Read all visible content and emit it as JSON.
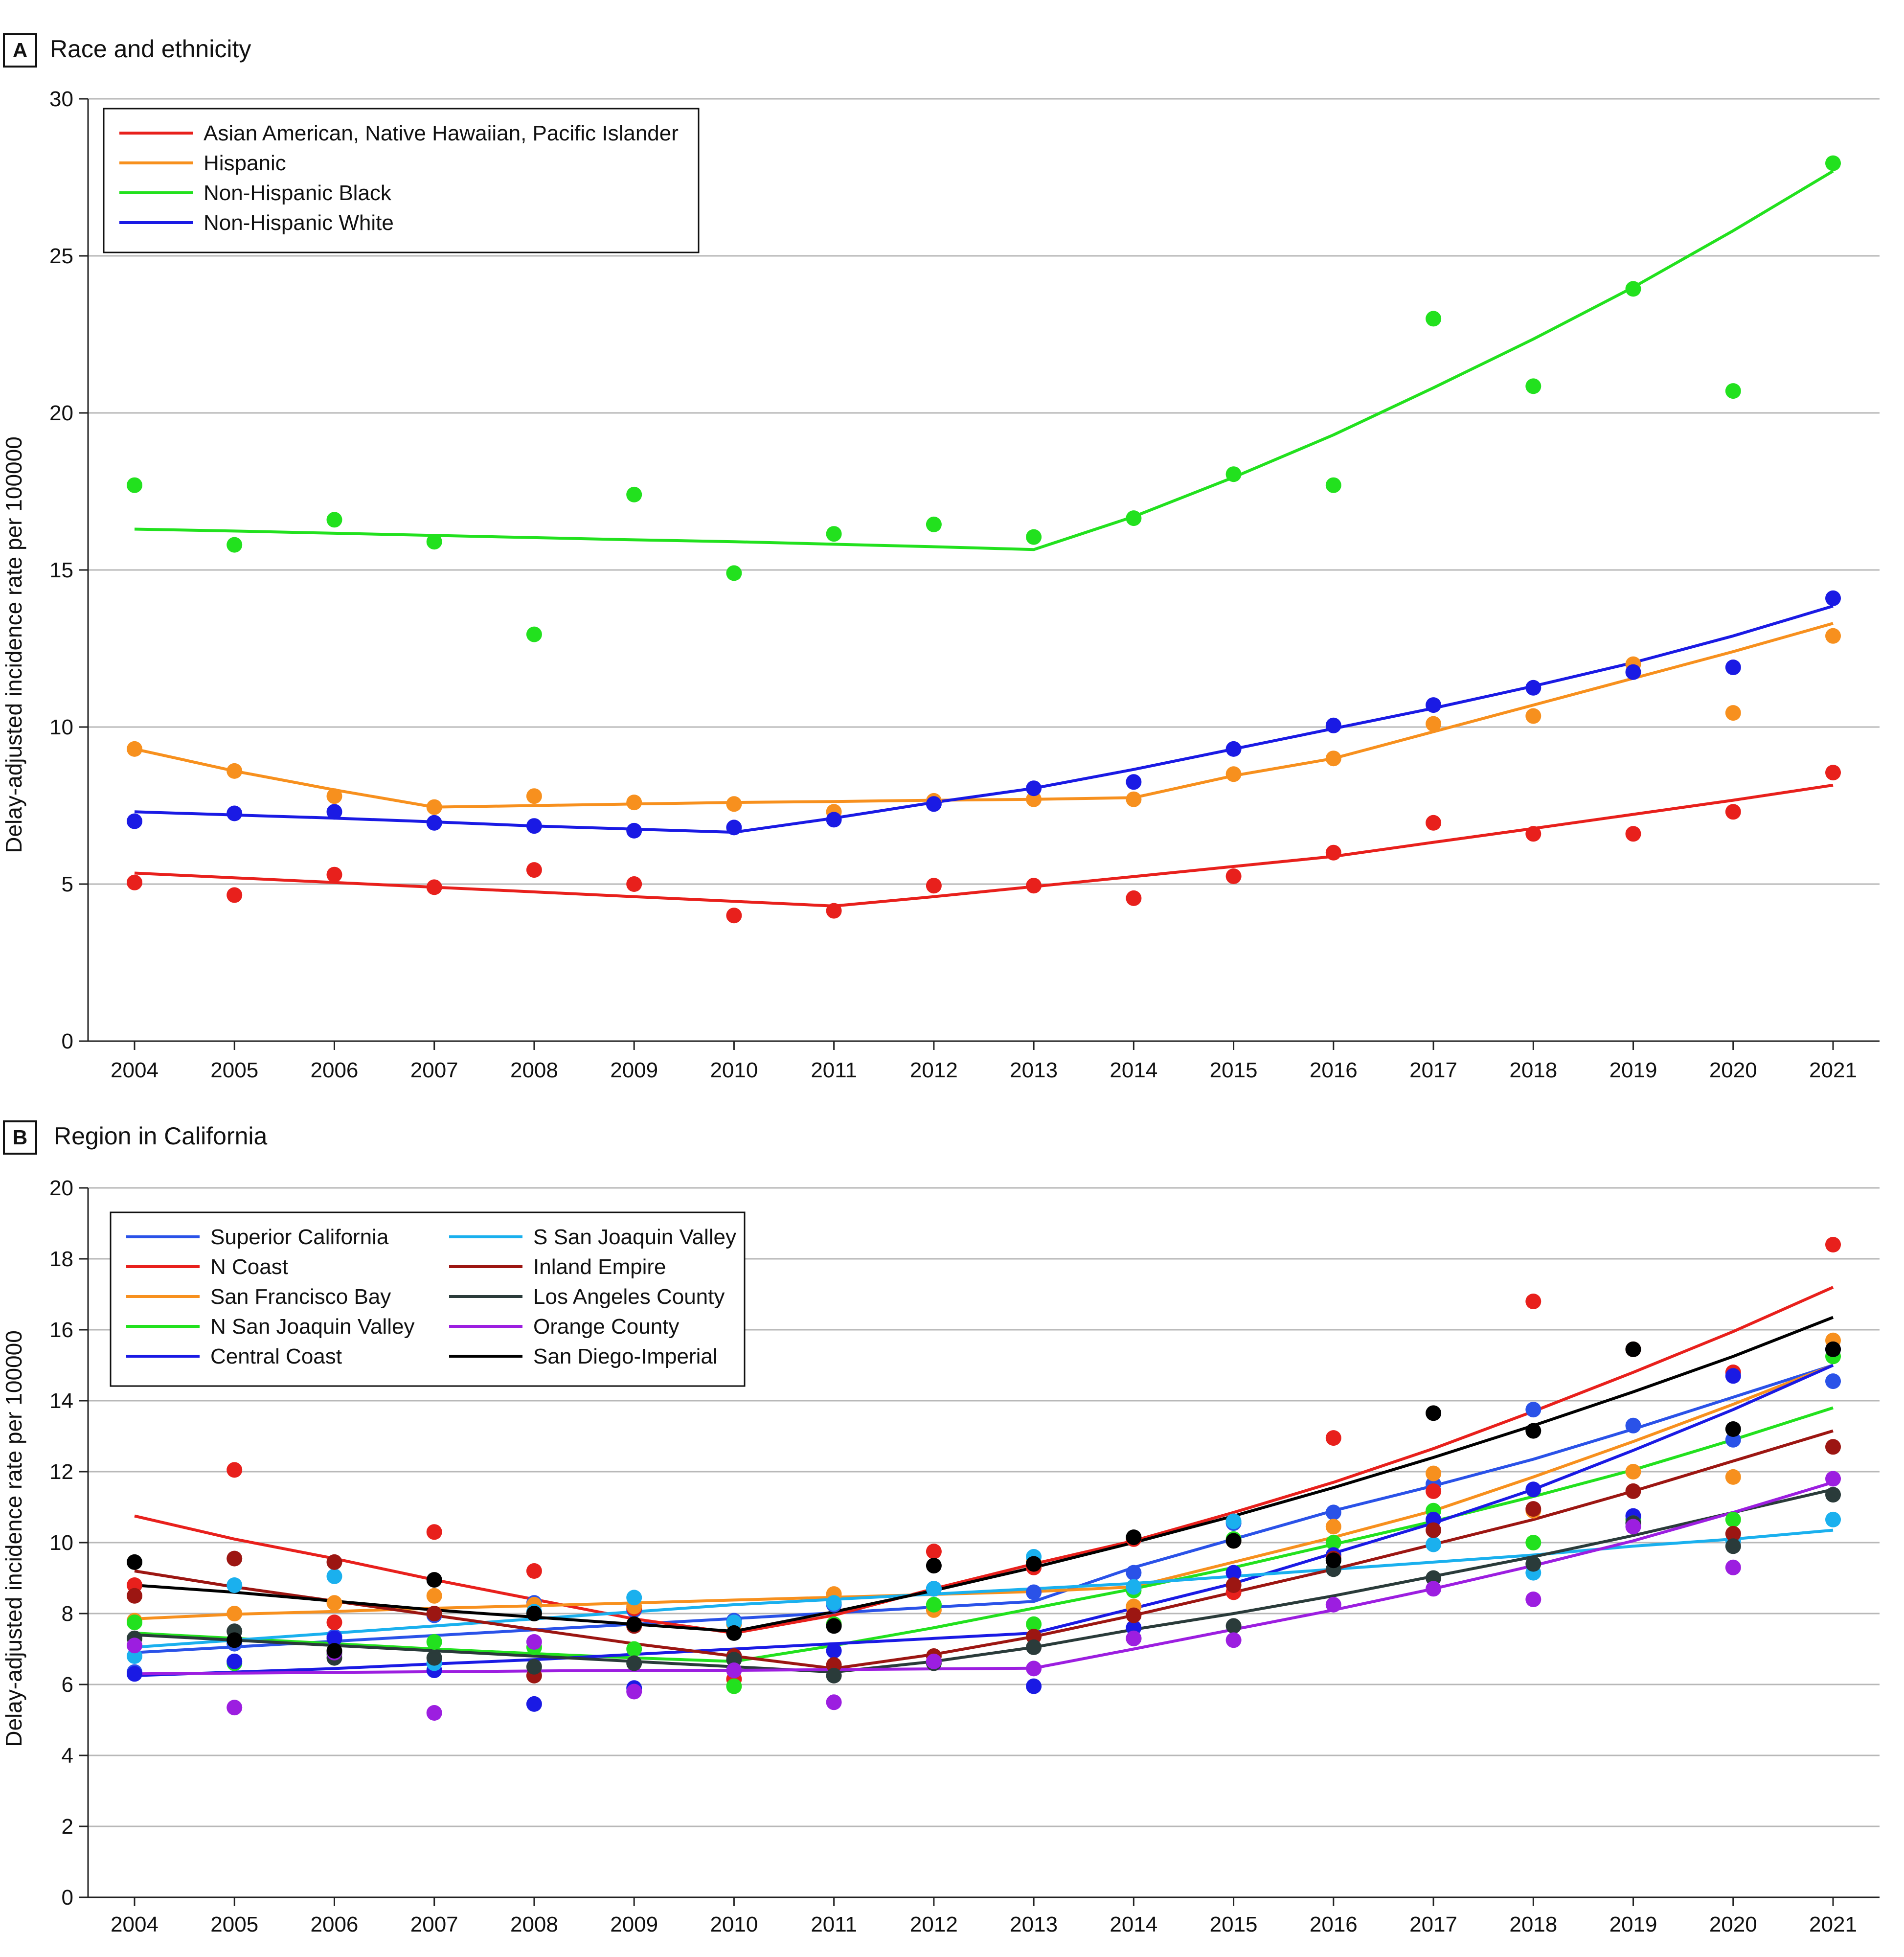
{
  "chart_data": [
    {
      "type": "line",
      "panel_label": "A",
      "title": "Race and ethnicity",
      "xlabel": "",
      "ylabel": "Delay-adjusted incidence rate per 100000",
      "ylim": [
        0,
        30
      ],
      "yticks": [
        0,
        5,
        10,
        15,
        20,
        25,
        30
      ],
      "categories": [
        2004,
        2005,
        2006,
        2007,
        2008,
        2009,
        2010,
        2011,
        2012,
        2013,
        2014,
        2015,
        2016,
        2017,
        2018,
        2019,
        2020,
        2021
      ],
      "legend_position": "top-left",
      "grid": true,
      "series": [
        {
          "name": "Asian American, Native Hawaiian, Pacific Islander",
          "color": "#e8201c",
          "points": [
            5.05,
            4.65,
            5.3,
            4.9,
            5.45,
            5.0,
            4.0,
            4.15,
            4.95,
            4.95,
            4.55,
            5.25,
            6.0,
            6.95,
            6.6,
            6.6,
            7.3,
            8.55
          ],
          "trend": [
            5.35,
            5.2,
            5.05,
            4.9,
            4.75,
            4.6,
            4.45,
            4.3,
            4.6,
            4.92,
            5.24,
            5.56,
            5.88,
            6.33,
            6.77,
            7.22,
            7.67,
            8.15
          ]
        },
        {
          "name": "Hispanic",
          "color": "#f7901e",
          "points": [
            9.3,
            8.6,
            7.8,
            7.45,
            7.8,
            7.6,
            7.55,
            7.3,
            7.65,
            7.7,
            7.7,
            8.5,
            9.0,
            10.1,
            10.35,
            12.0,
            10.45,
            12.9
          ],
          "trend": [
            9.3,
            8.6,
            8.0,
            7.45,
            7.5,
            7.55,
            7.6,
            7.63,
            7.67,
            7.7,
            7.75,
            8.45,
            9.0,
            9.85,
            10.7,
            11.55,
            12.4,
            13.3
          ]
        },
        {
          "name": "Non-Hispanic Black",
          "color": "#22e11e",
          "points": [
            17.7,
            15.8,
            16.6,
            15.9,
            12.95,
            17.4,
            14.9,
            16.15,
            16.45,
            16.05,
            16.65,
            18.05,
            17.7,
            23.0,
            20.85,
            23.95,
            20.7,
            27.95
          ],
          "trend": [
            16.3,
            16.24,
            16.17,
            16.1,
            16.03,
            15.96,
            15.9,
            15.82,
            15.74,
            15.65,
            16.7,
            17.95,
            19.3,
            20.8,
            22.35,
            24.0,
            25.8,
            27.7
          ]
        },
        {
          "name": "Non-Hispanic White",
          "color": "#1a1ae4",
          "points": [
            7.0,
            7.25,
            7.3,
            6.95,
            6.85,
            6.7,
            6.8,
            7.05,
            7.55,
            8.05,
            8.25,
            9.3,
            10.05,
            10.7,
            11.25,
            11.75,
            11.9,
            14.1
          ],
          "trend": [
            7.3,
            7.2,
            7.1,
            6.98,
            6.85,
            6.75,
            6.65,
            7.1,
            7.6,
            8.05,
            8.65,
            9.3,
            9.95,
            10.6,
            11.3,
            12.05,
            12.9,
            13.85
          ]
        }
      ]
    },
    {
      "type": "line",
      "panel_label": "B",
      "title": "Region in California",
      "xlabel": "",
      "ylabel": "Delay-adjusted incidence rate per 100000",
      "ylim": [
        0,
        20
      ],
      "yticks": [
        0,
        2,
        4,
        6,
        8,
        10,
        12,
        14,
        16,
        18,
        20
      ],
      "categories": [
        2004,
        2005,
        2006,
        2007,
        2008,
        2009,
        2010,
        2011,
        2012,
        2013,
        2014,
        2015,
        2016,
        2017,
        2018,
        2019,
        2020,
        2021
      ],
      "legend_position": "top-left",
      "legend_columns": 2,
      "grid": true,
      "series": [
        {
          "name": "Superior California",
          "color": "#2a52e8",
          "points": [
            6.35,
            7.15,
            7.35,
            7.95,
            8.3,
            8.1,
            7.8,
            8.25,
            8.7,
            8.6,
            9.15,
            10.55,
            10.85,
            11.65,
            13.75,
            13.3,
            12.9,
            14.55
          ],
          "trend": [
            6.9,
            7.06,
            7.22,
            7.38,
            7.54,
            7.7,
            7.86,
            8.02,
            8.18,
            8.34,
            9.3,
            10.1,
            10.9,
            11.6,
            12.35,
            13.2,
            14.1,
            15.0
          ]
        },
        {
          "name": "N Coast",
          "color": "#e8201c",
          "points": [
            8.8,
            12.05,
            7.75,
            10.3,
            9.2,
            8.15,
            6.15,
            7.7,
            9.75,
            9.3,
            10.1,
            8.6,
            12.95,
            11.45,
            16.8,
            15.45,
            14.8,
            18.4
          ],
          "trend": [
            10.75,
            10.1,
            9.55,
            8.95,
            8.4,
            7.85,
            7.45,
            7.95,
            8.7,
            9.4,
            10.05,
            10.85,
            11.7,
            12.65,
            13.7,
            14.8,
            15.95,
            17.2
          ]
        },
        {
          "name": "San Francisco Bay",
          "color": "#f7901e",
          "points": [
            7.8,
            8.0,
            8.3,
            8.5,
            8.25,
            8.2,
            7.7,
            8.55,
            8.1,
            9.45,
            8.2,
            10.05,
            10.45,
            11.95,
            10.9,
            12.0,
            11.85,
            15.7
          ],
          "trend": [
            7.85,
            7.98,
            8.06,
            8.15,
            8.22,
            8.3,
            8.38,
            8.46,
            8.54,
            8.62,
            8.75,
            9.45,
            10.15,
            10.9,
            11.85,
            12.85,
            13.9,
            15.0
          ]
        },
        {
          "name": "N San Joaquin Valley",
          "color": "#22e11e",
          "points": [
            7.75,
            6.6,
            6.85,
            7.2,
            7.05,
            7.0,
            5.95,
            7.7,
            8.25,
            7.7,
            8.65,
            10.1,
            10.0,
            10.9,
            10.0,
            10.65,
            10.65,
            15.25
          ],
          "trend": [
            7.45,
            7.3,
            7.15,
            7.0,
            6.87,
            6.75,
            6.65,
            7.1,
            7.6,
            8.15,
            8.7,
            9.3,
            9.95,
            10.6,
            11.3,
            12.05,
            12.9,
            13.8
          ]
        },
        {
          "name": "Central Coast",
          "color": "#1a1ae4",
          "points": [
            6.3,
            6.65,
            7.3,
            6.4,
            5.45,
            5.9,
            6.8,
            6.95,
            8.7,
            5.95,
            7.6,
            9.15,
            9.65,
            10.65,
            11.5,
            10.75,
            14.7,
            15.45
          ],
          "trend": [
            6.25,
            6.35,
            6.45,
            6.58,
            6.7,
            6.85,
            7.0,
            7.15,
            7.3,
            7.45,
            8.15,
            8.85,
            9.7,
            10.55,
            11.5,
            12.6,
            13.75,
            15.0
          ]
        },
        {
          "name": "S San Joaquin Valley",
          "color": "#1ab0ee",
          "points": [
            6.8,
            8.8,
            9.05,
            6.6,
            8.05,
            8.45,
            7.75,
            8.3,
            8.7,
            9.6,
            8.75,
            10.6,
            9.55,
            9.95,
            9.15,
            10.55,
            10.05,
            10.65
          ],
          "trend": [
            7.05,
            7.25,
            7.45,
            7.65,
            7.85,
            8.05,
            8.25,
            8.4,
            8.55,
            8.7,
            8.85,
            9.05,
            9.25,
            9.45,
            9.65,
            9.9,
            10.1,
            10.35
          ]
        },
        {
          "name": "Inland Empire",
          "color": "#9c1612",
          "points": [
            8.5,
            9.55,
            9.45,
            8.0,
            6.25,
            7.65,
            6.8,
            6.55,
            6.8,
            7.35,
            7.95,
            8.8,
            9.55,
            10.35,
            10.95,
            11.45,
            10.25,
            12.7
          ],
          "trend": [
            9.2,
            8.75,
            8.35,
            7.95,
            7.55,
            7.15,
            6.8,
            6.45,
            6.85,
            7.35,
            7.95,
            8.6,
            9.25,
            9.95,
            10.65,
            11.45,
            12.3,
            13.15
          ]
        },
        {
          "name": "Los Angeles County",
          "color": "#2a3b3a",
          "points": [
            7.3,
            7.5,
            6.75,
            6.75,
            6.5,
            6.6,
            6.7,
            6.25,
            6.6,
            7.05,
            7.3,
            7.65,
            9.25,
            9.0,
            9.4,
            10.55,
            9.9,
            11.35
          ],
          "trend": [
            7.4,
            7.25,
            7.1,
            6.95,
            6.8,
            6.65,
            6.5,
            6.35,
            6.65,
            7.05,
            7.55,
            8.0,
            8.5,
            9.05,
            9.6,
            10.2,
            10.85,
            11.5
          ]
        },
        {
          "name": "Orange County",
          "color": "#9c1ee0",
          "points": [
            7.1,
            5.35,
            6.9,
            5.2,
            7.2,
            5.8,
            6.4,
            5.5,
            6.65,
            6.45,
            7.3,
            7.25,
            8.25,
            8.7,
            8.4,
            10.45,
            9.3,
            11.8
          ],
          "trend": [
            6.3,
            6.32,
            6.34,
            6.36,
            6.38,
            6.4,
            6.4,
            6.42,
            6.44,
            6.46,
            7.0,
            7.55,
            8.1,
            8.7,
            9.35,
            10.05,
            10.85,
            11.7
          ]
        },
        {
          "name": "San Diego-Imperial",
          "color": "#000000",
          "points": [
            9.45,
            7.25,
            6.95,
            8.95,
            8.0,
            7.7,
            7.45,
            7.65,
            9.35,
            9.4,
            10.15,
            10.05,
            9.5,
            13.65,
            13.15,
            15.45,
            13.2,
            15.45
          ],
          "trend": [
            8.8,
            8.6,
            8.35,
            8.1,
            7.9,
            7.7,
            7.5,
            8.05,
            8.65,
            9.3,
            10.0,
            10.75,
            11.55,
            12.4,
            13.3,
            14.25,
            15.25,
            16.35
          ]
        }
      ]
    }
  ]
}
